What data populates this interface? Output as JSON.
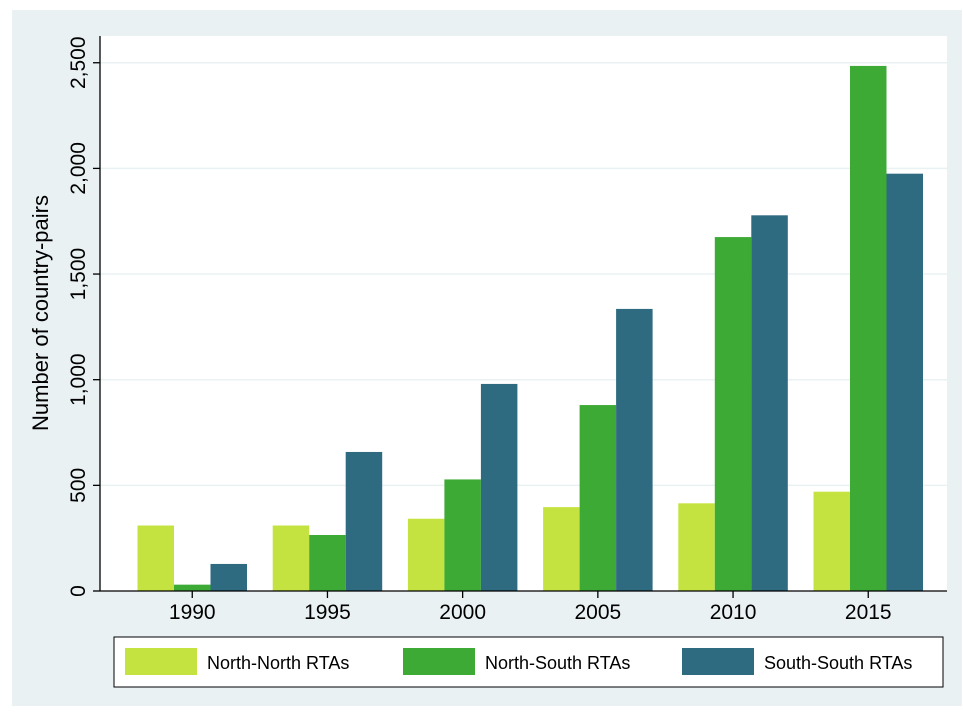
{
  "chart_data": {
    "type": "bar",
    "title": "",
    "xlabel": "",
    "ylabel": "Number of country-pairs",
    "categories": [
      "1990",
      "1995",
      "2000",
      "2005",
      "2010",
      "2015"
    ],
    "series": [
      {
        "name": "North-North RTAs",
        "color": "#c5e340",
        "values": [
          310,
          310,
          342,
          397,
          415,
          470
        ]
      },
      {
        "name": "North-South RTAs",
        "color": "#3daa35",
        "values": [
          30,
          265,
          528,
          880,
          1675,
          2485
        ]
      },
      {
        "name": "South-South RTAs",
        "color": "#2e6a80",
        "values": [
          128,
          658,
          980,
          1335,
          1778,
          1975
        ]
      }
    ],
    "ylim": [
      0,
      2600
    ],
    "yticks": [
      0,
      500,
      1000,
      1500,
      2000,
      2500
    ],
    "ytick_labels": [
      "0",
      "500",
      "1,000",
      "1,500",
      "2,000",
      "2,500"
    ],
    "grid": true,
    "legend_position": "bottom",
    "background_color": "#eaf1f3",
    "plot_background_color": "#ffffff",
    "grid_color": "#eaf1f3"
  }
}
